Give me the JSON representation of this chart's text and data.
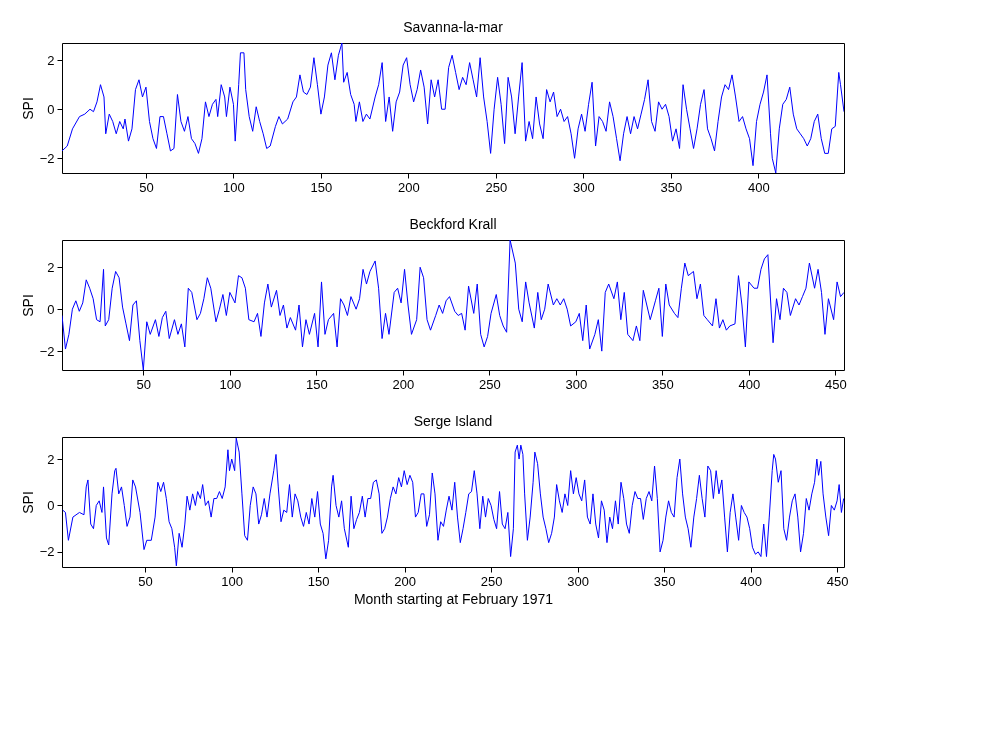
{
  "chart_data": [
    {
      "type": "line",
      "title": "Savanna-la-mar",
      "ylabel": "SPI",
      "xlim": [
        2,
        449
      ],
      "ylim": [
        -2.6,
        2.7
      ],
      "xticks": [
        50,
        100,
        150,
        200,
        250,
        300,
        350,
        400
      ],
      "yticks": [
        -2,
        0,
        2
      ],
      "grid": false,
      "x": [
        2,
        5,
        8,
        12,
        15,
        18,
        20,
        22,
        24,
        26,
        27,
        29,
        31,
        33,
        35,
        37,
        38,
        40,
        42,
        44,
        46,
        48,
        50,
        52,
        54,
        56,
        58,
        60,
        62,
        64,
        66,
        68,
        70,
        72,
        74,
        76,
        78,
        80,
        82,
        84,
        86,
        88,
        90,
        91,
        93,
        95,
        96,
        98,
        100,
        101,
        103,
        104,
        106,
        107,
        109,
        111,
        113,
        115,
        117,
        119,
        121,
        124,
        126,
        128,
        131,
        134,
        136,
        138,
        140,
        142,
        144,
        146,
        148,
        150,
        152,
        154,
        156,
        158,
        160,
        162,
        163,
        165,
        167,
        169,
        170,
        172,
        174,
        176,
        178,
        181,
        183,
        185,
        187,
        189,
        191,
        193,
        195,
        197,
        199,
        201,
        203,
        205,
        207,
        209,
        211,
        213,
        215,
        217,
        219,
        221,
        223,
        225,
        227,
        229,
        231,
        233,
        235,
        237,
        239,
        241,
        243,
        245,
        247,
        249,
        251,
        253,
        255,
        257,
        259,
        261,
        263,
        265,
        267,
        269,
        271,
        273,
        275,
        277,
        279,
        281,
        283,
        285,
        287,
        289,
        291,
        293,
        295,
        297,
        299,
        301,
        303,
        305,
        307,
        309,
        311,
        313,
        315,
        317,
        319,
        321,
        323,
        325,
        327,
        329,
        331,
        333,
        335,
        337,
        339,
        341,
        343,
        345,
        347,
        349,
        351,
        353,
        355,
        357,
        359,
        361,
        363,
        365,
        367,
        369,
        371,
        373,
        375,
        377,
        379,
        381,
        383,
        385,
        387,
        389,
        391,
        393,
        395,
        397,
        399,
        401,
        403,
        405,
        407,
        408,
        410,
        412,
        414,
        416,
        418,
        420,
        422,
        424,
        426,
        428,
        430,
        432,
        434,
        436,
        438,
        440,
        442,
        444,
        446,
        447,
        449
      ],
      "series": [
        {
          "color": "#0000ff",
          "values": [
            -1.7,
            -1.5,
            -0.8,
            -0.3,
            -0.2,
            0,
            -0.1,
            0.3,
            1.0,
            0.5,
            -1.0,
            -0.2,
            -0.5,
            -1.0,
            -0.5,
            -0.8,
            -0.4,
            -1.3,
            -0.8,
            0.8,
            1.2,
            0.5,
            0.9,
            -0.5,
            -1.2,
            -1.6,
            -0.3,
            -0.3,
            -1.0,
            -1.7,
            -1.6,
            0.6,
            -0.5,
            -0.9,
            -0.3,
            -1.2,
            -1.4,
            -1.8,
            -1.2,
            0.3,
            -0.3,
            0.2,
            0.4,
            -0.3,
            1.0,
            0.5,
            -0.3,
            0.9,
            0.2,
            -1.3,
            1.0,
            2.3,
            2.3,
            0.8,
            -0.3,
            -0.9,
            0.1,
            -0.5,
            -1.0,
            -1.6,
            -1.5,
            -0.7,
            -0.3,
            -0.6,
            -0.4,
            0.3,
            0.5,
            1.4,
            0.7,
            0.6,
            0.9,
            2.1,
            1.0,
            -0.2,
            0.5,
            1.8,
            2.3,
            1.2,
            2.2,
            2.7,
            1.1,
            1.5,
            0.6,
            0.2,
            -0.5,
            0.3,
            -0.5,
            -0.2,
            -0.4,
            0.5,
            1.0,
            1.9,
            -0.5,
            0.5,
            -0.9,
            0.3,
            0.7,
            1.8,
            2.1,
            1.0,
            0.3,
            0.8,
            1.6,
            0.9,
            -0.6,
            1.2,
            0.5,
            1.2,
            0,
            0,
            1.7,
            2.2,
            1.5,
            0.8,
            1.3,
            1.0,
            1.9,
            1.2,
            0.5,
            2.1,
            0.5,
            -0.5,
            -1.8,
            0,
            1.3,
            0.2,
            -1.4,
            1.3,
            0.5,
            -1.0,
            0.5,
            1.9,
            -1.3,
            -0.5,
            -1.2,
            0.5,
            -0.6,
            -1.2,
            0.8,
            0.3,
            0.7,
            -0.3,
            0,
            -0.5,
            -0.3,
            -1.0,
            -2.0,
            -0.8,
            -0.2,
            -0.9,
            0.2,
            1.1,
            -1.5,
            -0.3,
            -0.5,
            -0.9,
            0.3,
            -0.3,
            -1.2,
            -2.1,
            -1.0,
            -0.3,
            -1.0,
            -0.3,
            -0.8,
            -0.2,
            0.4,
            1.2,
            -0.5,
            -0.9,
            0.3,
            0,
            0.2,
            -0.3,
            -1.3,
            -0.8,
            -1.6,
            1.0,
            0,
            -0.8,
            -1.6,
            -0.8,
            0.2,
            0.8,
            -0.8,
            -1.2,
            -1.7,
            -0.5,
            0.5,
            1.0,
            0.8,
            1.4,
            0.5,
            -0.5,
            -0.3,
            -0.8,
            -1.2,
            -2.3,
            -0.5,
            0.2,
            0.7,
            1.4,
            -1.0,
            -2.0,
            -2.6,
            -0.8,
            0.2,
            0.4,
            0.9,
            -0.2,
            -0.8,
            -1.0,
            -1.2,
            -1.5,
            -1.2,
            -0.5,
            -0.2,
            -1.2,
            -1.8,
            -1.8,
            -0.8,
            -0.7,
            1.5,
            1.0,
            -0.1
          ]
        }
      ]
    },
    {
      "type": "line",
      "title": "Beckford Krall",
      "ylabel": "SPI",
      "xlim": [
        3,
        455
      ],
      "ylim": [
        -2.9,
        3.3
      ],
      "xticks": [
        50,
        100,
        150,
        200,
        250,
        300,
        350,
        400,
        450
      ],
      "yticks": [
        -2,
        0,
        2
      ],
      "grid": false,
      "x": [
        3,
        5,
        7,
        9,
        11,
        13,
        15,
        17,
        19,
        21,
        23,
        25,
        27,
        28,
        30,
        32,
        34,
        36,
        38,
        40,
        42,
        44,
        46,
        48,
        50,
        52,
        54,
        57,
        59,
        61,
        63,
        65,
        68,
        70,
        72,
        74,
        76,
        78,
        81,
        83,
        85,
        87,
        89,
        92,
        94,
        96,
        98,
        100,
        103,
        105,
        107,
        109,
        111,
        114,
        116,
        118,
        120,
        122,
        124,
        127,
        129,
        131,
        133,
        135,
        138,
        140,
        142,
        144,
        146,
        149,
        151,
        153,
        155,
        157,
        160,
        162,
        164,
        166,
        168,
        170,
        173,
        175,
        177,
        179,
        181,
        184,
        186,
        188,
        190,
        192,
        195,
        197,
        199,
        201,
        203,
        205,
        208,
        210,
        212,
        214,
        216,
        219,
        221,
        223,
        225,
        227,
        230,
        232,
        234,
        236,
        238,
        241,
        243,
        245,
        247,
        249,
        251,
        254,
        256,
        258,
        260,
        262,
        265,
        267,
        269,
        271,
        273,
        276,
        278,
        280,
        282,
        284,
        287,
        289,
        291,
        293,
        295,
        297,
        300,
        302,
        304,
        306,
        308,
        311,
        313,
        315,
        317,
        319,
        322,
        324,
        326,
        328,
        330,
        333,
        335,
        337,
        339,
        341,
        343,
        346,
        348,
        350,
        352,
        354,
        357,
        359,
        361,
        363,
        365,
        368,
        370,
        372,
        374,
        376,
        379,
        381,
        383,
        385,
        387,
        389,
        392,
        394,
        396,
        398,
        400,
        403,
        405,
        407,
        409,
        411,
        414,
        416,
        418,
        420,
        422,
        424,
        427,
        429,
        431,
        433,
        435,
        438,
        440,
        442,
        444,
        446,
        449,
        451,
        453,
        455
      ],
      "series": [
        {
          "color": "#0000ff",
          "values": [
            -0.3,
            -1.9,
            -1.2,
            0,
            0.4,
            -0.1,
            0.3,
            1.4,
            1.0,
            0.5,
            -0.5,
            -0.6,
            1.9,
            -0.8,
            -0.5,
            1.0,
            1.8,
            1.5,
            0.1,
            -0.7,
            -1.5,
            0.2,
            0.4,
            -1.5,
            -2.9,
            -0.6,
            -1.2,
            -0.5,
            -1.3,
            -0.4,
            -0.1,
            -1.4,
            -0.5,
            -1.2,
            -0.7,
            -1.8,
            1.0,
            0.8,
            -0.5,
            -0.2,
            0.5,
            1.5,
            1.0,
            -0.6,
            0,
            0.7,
            -0.3,
            0.8,
            0.3,
            1.6,
            1.5,
            1.0,
            -0.5,
            -0.6,
            -0.2,
            -1.3,
            0.3,
            1.2,
            0.1,
            0.9,
            -0.3,
            0.2,
            -0.9,
            -0.4,
            -1.0,
            0.2,
            -1.8,
            -0.5,
            -1.2,
            -0.2,
            -1.8,
            1.3,
            -1.2,
            -0.5,
            -0.2,
            -1.8,
            0.5,
            0.2,
            -0.3,
            0.6,
            0,
            0.5,
            1.9,
            1.2,
            1.8,
            2.3,
            1.0,
            -1.4,
            -0.2,
            -1.2,
            0.8,
            1.0,
            0.3,
            1.9,
            0.2,
            -1.2,
            -0.5,
            2.0,
            1.5,
            -0.5,
            -1.0,
            -0.3,
            0.2,
            -0.2,
            0.4,
            0.6,
            -0.1,
            -0.3,
            -0.2,
            -1.0,
            1.1,
            -0.2,
            1.2,
            -1.2,
            -1.8,
            -1.3,
            -0.2,
            0.7,
            -0.3,
            -0.8,
            -1.1,
            3.3,
            2.2,
            0,
            -0.6,
            1.3,
            0.3,
            -0.9,
            0.8,
            -0.5,
            0,
            1.2,
            0.2,
            0.5,
            0.2,
            0.5,
            0,
            -0.8,
            -0.6,
            -0.2,
            -1.5,
            0.2,
            -1.9,
            -1.2,
            -0.5,
            -2.0,
            0.8,
            1.2,
            0.5,
            1.3,
            -0.5,
            0.8,
            -1.2,
            -1.5,
            -0.8,
            -1.5,
            0.9,
            0.2,
            -0.5,
            0.4,
            1.0,
            -1.3,
            1.2,
            0.2,
            -0.2,
            -0.4,
            1.0,
            2.2,
            1.6,
            1.8,
            0.5,
            1.2,
            -0.3,
            -0.5,
            -0.8,
            0.5,
            -0.9,
            -0.5,
            -1.0,
            -0.8,
            -0.7,
            1.6,
            0.2,
            -1.8,
            1.3,
            1.0,
            1.0,
            1.9,
            2.4,
            2.6,
            -1.6,
            0.5,
            -0.5,
            1.0,
            0.8,
            -0.3,
            0.5,
            0.2,
            0.6,
            1.0,
            2.2,
            1.0,
            1.9,
            0.8,
            -1.2,
            0.5,
            -0.5,
            1.3,
            0.6,
            0.8
          ]
        }
      ]
    },
    {
      "type": "line",
      "title": "Serge Island",
      "ylabel": "SPI",
      "xlabel": "Month starting at February 1971",
      "xlim": [
        2,
        454
      ],
      "ylim": [
        -2.65,
        2.95
      ],
      "xticks": [
        50,
        100,
        150,
        200,
        250,
        300,
        350,
        400,
        450
      ],
      "yticks": [
        -2,
        0,
        2
      ],
      "grid": false,
      "x": [
        2.4,
        4.0,
        5.7,
        8.3,
        12.1,
        14.7,
        16.0,
        17.0,
        18.6,
        20.2,
        21.8,
        23.5,
        25.1,
        26.0,
        27.7,
        29.0,
        30.9,
        32.5,
        33.2,
        34.8,
        36.4,
        38.0,
        39.6,
        41.3,
        42.9,
        44.5,
        47.1,
        49.4,
        51.0,
        53.6,
        55.8,
        57.4,
        59.1,
        60.7,
        62.3,
        63.9,
        65.5,
        67.1,
        68.1,
        69.7,
        71.4,
        73.0,
        74.3,
        75.9,
        77.5,
        79.1,
        80.4,
        82.0,
        83.3,
        84.9,
        86.6,
        88.2,
        89.8,
        91.4,
        93.0,
        94.6,
        96.3,
        97.9,
        98.8,
        100.1,
        101.8,
        102.7,
        104.4,
        106.0,
        107.6,
        109.2,
        110.8,
        112.5,
        114.1,
        115.7,
        117.3,
        118.9,
        120.5,
        122.2,
        124.4,
        125.7,
        127.0,
        128.6,
        130.2,
        131.9,
        133.5,
        135.1,
        136.7,
        138.3,
        140.0,
        141.6,
        143.2,
        144.8,
        146.4,
        148.1,
        149.7,
        151.3,
        152.9,
        154.5,
        156.1,
        157.8,
        158.7,
        160.4,
        162.0,
        163.6,
        165.2,
        167.5,
        169.1,
        170.7,
        172.3,
        173.9,
        175.6,
        177.2,
        178.8,
        180.4,
        182.0,
        183.7,
        185.3,
        186.9,
        188.5,
        190.1,
        191.8,
        193.4,
        195.0,
        196.6,
        198.2,
        199.8,
        201.5,
        203.1,
        204.7,
        206.3,
        207.9,
        209.6,
        211.2,
        212.8,
        214.4,
        216.0,
        217.6,
        219.3,
        220.9,
        222.5,
        224.1,
        225.7,
        227.4,
        229.0,
        230.6,
        232.2,
        233.8,
        235.4,
        237.1,
        238.7,
        240.3,
        241.9,
        243.5,
        245.2,
        246.8,
        248.4,
        250.0,
        251.6,
        253.2,
        254.9,
        256.5,
        258.1,
        259.7,
        261.3,
        262.9,
        263.9,
        265.2,
        266.2,
        267.2,
        268.4,
        269.4,
        271.0,
        272.6,
        274.3,
        275.3,
        276.9,
        278.5,
        280.1,
        281.7,
        283.3,
        285.0,
        286.6,
        287.9,
        289.5,
        291.1,
        292.7,
        294.3,
        296.0,
        297.6,
        299.2,
        300.8,
        302.4,
        304.1,
        305.7,
        307.3,
        308.9,
        310.5,
        312.1,
        313.8,
        315.4,
        317.0,
        318.6,
        320.2,
        321.9,
        323.5,
        325.1,
        326.7,
        328.3,
        329.9,
        331.6,
        333.2,
        334.8,
        336.4,
        338.0,
        339.7,
        341.3,
        342.9,
        344.5,
        346.1,
        347.7,
        349.4,
        351.0,
        352.6,
        354.2,
        355.8,
        357.5,
        359.1,
        360.7,
        362.3,
        363.9,
        365.5,
        367.2,
        368.8,
        370.4,
        372.0,
        373.6,
        375.3,
        376.9,
        378.5,
        380.1,
        381.7,
        383.4,
        385.0,
        386.6,
        388.2,
        389.8,
        391.4,
        393.1,
        394.7,
        396.3,
        397.9,
        399.5,
        401.1,
        402.8,
        404.4,
        406.0,
        407.6,
        409.2,
        410.8,
        412.5,
        413.4,
        414.4,
        416.0,
        417.6,
        419.2,
        420.8,
        422.5,
        424.1,
        425.7,
        427.3,
        428.9,
        430.6,
        432.2,
        433.8,
        435.4,
        437.0,
        438.3,
        439.3,
        440.6,
        441.9,
        443.5,
        445.1,
        446.7,
        448.4,
        450.0,
        451.2,
        452.5,
        453.8
      ],
      "series": [
        {
          "color": "#0000ff",
          "values": [
            -0.2,
            -0.3,
            -1.5,
            -0.5,
            -0.3,
            -0.4,
            0.8,
            1.1,
            -0.8,
            -1.0,
            0,
            0.2,
            -0.3,
            0.8,
            -1.4,
            -1.7,
            0.5,
            1.5,
            1.6,
            0.5,
            0.8,
            0,
            -0.9,
            -0.5,
            1.1,
            0.8,
            -0.3,
            -1.9,
            -1.5,
            -1.5,
            -0.5,
            1.0,
            0.6,
            1.0,
            0.3,
            -0.7,
            -1.0,
            -1.8,
            -2.6,
            -1.2,
            -1.8,
            -0.8,
            0.4,
            -0.2,
            0.5,
            0,
            0.6,
            0.3,
            0.9,
            0,
            0.2,
            -0.5,
            0.3,
            0.3,
            0.6,
            0.3,
            0.8,
            2.4,
            1.5,
            2.0,
            1.5,
            2.9,
            2.3,
            0.5,
            -1.3,
            -1.5,
            0,
            0.8,
            0.5,
            -0.8,
            -0.4,
            0.3,
            -0.5,
            0.5,
            1.5,
            2.2,
            0.8,
            -0.7,
            -0.2,
            -0.3,
            0.9,
            -0.5,
            0.5,
            0.2,
            -0.5,
            -0.9,
            -0.3,
            -0.8,
            0.3,
            -0.5,
            0.6,
            -0.8,
            -1.2,
            -2.3,
            -1.5,
            0.8,
            1.3,
            0,
            -0.5,
            0.2,
            -1.0,
            -1.8,
            0.4,
            -1.0,
            -0.6,
            -0.3,
            0.4,
            -0.5,
            0.3,
            0.3,
            1.0,
            1.1,
            0.5,
            -1.2,
            -1.0,
            -0.5,
            0.3,
            0.8,
            0.5,
            1.2,
            0.8,
            1.5,
            0.9,
            1.3,
            1.0,
            -0.5,
            -0.3,
            0.5,
            0.5,
            -0.9,
            -0.4,
            1.4,
            0.5,
            -1.5,
            -0.7,
            -0.9,
            -0.2,
            0.4,
            -0.2,
            1.0,
            -0.5,
            -1.6,
            -1.0,
            -0.3,
            0.5,
            0.6,
            1.5,
            0.5,
            -1.0,
            0.4,
            -0.5,
            0.3,
            0,
            -0.6,
            -1.0,
            0.6,
            -0.8,
            -1.0,
            -0.3,
            -2.2,
            -1.0,
            2.3,
            2.6,
            2.0,
            2.6,
            2.2,
            0.5,
            -1.5,
            -0.5,
            1.0,
            2.3,
            1.8,
            0.5,
            -0.5,
            -1.0,
            -1.6,
            -1.2,
            -0.5,
            0.9,
            0.2,
            -0.3,
            0.5,
            0,
            1.5,
            0.5,
            1.2,
            0.5,
            0.2,
            1.1,
            -0.5,
            -0.8,
            0.5,
            -0.8,
            -1.4,
            0.2,
            -0.2,
            -1.6,
            -0.5,
            -1.0,
            0.2,
            -0.8,
            1.0,
            0.3,
            -0.8,
            -1.2,
            0,
            0.6,
            0.3,
            0.3,
            -0.6,
            0.3,
            0.6,
            0.2,
            1.7,
            0.3,
            -2.0,
            -1.5,
            -0.5,
            0.2,
            -0.3,
            -0.5,
            1.2,
            2.0,
            0.5,
            -0.5,
            -1.0,
            -1.8,
            -0.5,
            0.3,
            1.3,
            0.3,
            -0.5,
            1.7,
            1.5,
            0.3,
            1.5,
            0.5,
            1.1,
            -0.5,
            -2.0,
            -0.3,
            0.5,
            -0.5,
            -1.5,
            0,
            -0.3,
            -0.5,
            -1.0,
            -1.8,
            -2.1,
            -2.0,
            -2.2,
            -0.8,
            -2.2,
            -0.5,
            1.5,
            2.2,
            2.0,
            1.0,
            1.5,
            -1.0,
            -1.5,
            -0.5,
            0.2,
            0.5,
            -0.5,
            -2.0,
            -1.2,
            0.3,
            -0.2,
            0.5,
            1.0,
            2.0,
            1.3,
            1.9,
            0.5,
            -0.5,
            -1.3,
            0,
            -0.2,
            0.2,
            0.9,
            -0.3,
            0.3
          ]
        }
      ]
    }
  ]
}
